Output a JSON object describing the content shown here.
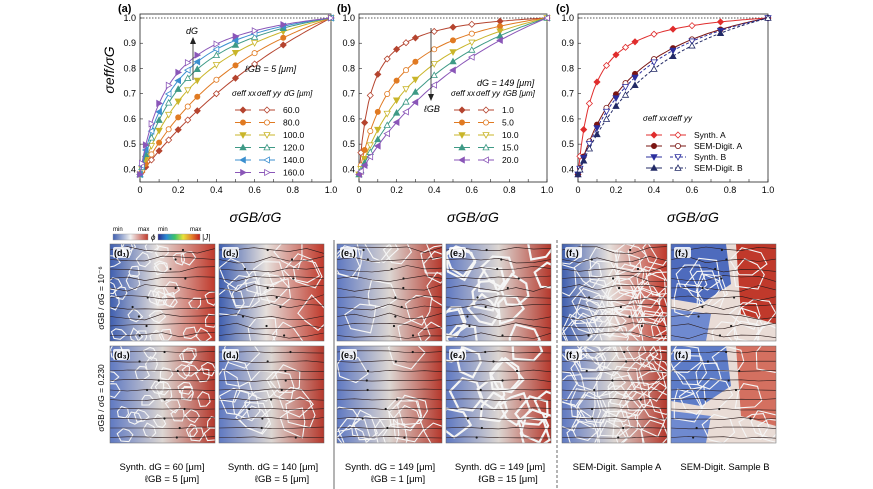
{
  "chart_data": [
    {
      "type": "line",
      "panel": "(a)",
      "ylabel": "σeff/σG",
      "xlabel": "σGB/σG",
      "xlim": [
        0,
        1
      ],
      "ylim": [
        0.35,
        1.0
      ],
      "xticks": [
        "0",
        "0.1",
        "0.2",
        "0.3",
        "0.4",
        "0.5",
        "0.6",
        "0.7",
        "0.8",
        "0.9",
        "1.0"
      ],
      "yticks": [
        "0.4",
        "0.5",
        "0.6",
        "0.7",
        "0.8",
        "0.9",
        "1.0"
      ],
      "annotation": "ℓGB = 5 [μm]",
      "arrow_label": "dG",
      "legend_header": [
        "σeff xx",
        "σeff yy",
        "dG [μm]"
      ],
      "x": [
        0,
        0.01,
        0.03,
        0.06,
        0.1,
        0.15,
        0.2,
        0.25,
        0.3,
        0.4,
        0.5,
        0.6,
        0.75,
        1.0
      ],
      "series": [
        {
          "name": "60.0",
          "color": "#b5442f",
          "marker": "diamond",
          "k": 0.6
        },
        {
          "name": "80.0",
          "color": "#e07a22",
          "marker": "circle",
          "k": 1.3
        },
        {
          "name": "100.0",
          "color": "#c9b52a",
          "marker": "tri-down",
          "k": 2.5
        },
        {
          "name": "120.0",
          "color": "#3e9a86",
          "marker": "tri-up",
          "k": 3.8
        },
        {
          "name": "140.0",
          "color": "#3b8fcf",
          "marker": "tri-left",
          "k": 5.0
        },
        {
          "name": "160.0",
          "color": "#8a56b8",
          "marker": "tri-right",
          "k": 6.5
        }
      ]
    },
    {
      "type": "line",
      "panel": "(b)",
      "xlabel": "σGB/σG",
      "xlim": [
        0,
        1
      ],
      "ylim": [
        0.35,
        1.0
      ],
      "xticks": [
        "0",
        "0.1",
        "0.2",
        "0.3",
        "0.4",
        "0.5",
        "0.6",
        "0.7",
        "0.8",
        "0.9",
        "1.0"
      ],
      "yticks": [
        "0.4",
        "0.5",
        "0.6",
        "0.7",
        "0.8",
        "0.9",
        "1.0"
      ],
      "annotation": "dG = 149 [μm]",
      "arrow_label": "ℓGB",
      "legend_header": [
        "σeff xx",
        "σeff yy",
        "ℓGB [μm]"
      ],
      "x": [
        0,
        0.01,
        0.03,
        0.06,
        0.1,
        0.15,
        0.2,
        0.25,
        0.3,
        0.4,
        0.5,
        0.6,
        0.75,
        1.0
      ],
      "series": [
        {
          "name": "1.0",
          "color": "#b5442f",
          "marker": "diamond",
          "k": 15
        },
        {
          "name": "5.0",
          "color": "#e07a22",
          "marker": "circle",
          "k": 5
        },
        {
          "name": "10.0",
          "color": "#c9b52a",
          "marker": "tri-down",
          "k": 2.6
        },
        {
          "name": "15.0",
          "color": "#3e9a86",
          "marker": "tri-up",
          "k": 1.6
        },
        {
          "name": "20.0",
          "color": "#8a56b8",
          "marker": "tri-left",
          "k": 1.0
        }
      ]
    },
    {
      "type": "line",
      "panel": "(c)",
      "xlabel": "σGB/σG",
      "xlim": [
        0,
        1
      ],
      "ylim": [
        0.35,
        1.0
      ],
      "xticks": [
        "0",
        "0.1",
        "0.2",
        "0.3",
        "0.4",
        "0.5",
        "0.6",
        "0.7",
        "0.8",
        "0.9",
        "1.0"
      ],
      "yticks": [
        "0.4",
        "0.5",
        "0.6",
        "0.7",
        "0.8",
        "0.9",
        "1.0"
      ],
      "legend_header": [
        "σeff xx",
        "σeff yy"
      ],
      "x": [
        0,
        0.01,
        0.03,
        0.06,
        0.1,
        0.15,
        0.2,
        0.25,
        0.3,
        0.4,
        0.5,
        0.6,
        0.75,
        1.0
      ],
      "series": [
        {
          "name": "Synth. A",
          "color": "#e02d2d",
          "marker": "diamond",
          "k": 12,
          "dash": false
        },
        {
          "name": "SEM-Digit. A",
          "color": "#7a1512",
          "marker": "circle",
          "k": 3.2,
          "dash": false
        },
        {
          "name": "Synth. B",
          "color": "#2b2f9e",
          "marker": "tri-down",
          "k": 2.8,
          "dash": true
        },
        {
          "name": "SEM-Digit. B",
          "color": "#222a66",
          "marker": "tri-up",
          "k": 2.1,
          "dash": true
        }
      ]
    }
  ],
  "colorbars": {
    "min": "min",
    "max": "max",
    "phi": "ϕ",
    "J": "|J|"
  },
  "row_labels": [
    "σGB / σG = 10⁻⁶",
    "σGB / σG = 0.230"
  ],
  "maps": [
    {
      "label": "(d₁)",
      "group": "d",
      "row": 0
    },
    {
      "label": "(d₂)",
      "group": "d",
      "row": 0
    },
    {
      "label": "(e₁)",
      "group": "e",
      "row": 0
    },
    {
      "label": "(e₂)",
      "group": "e",
      "row": 0
    },
    {
      "label": "(f₁)",
      "group": "f",
      "row": 0
    },
    {
      "label": "(f₂)",
      "group": "f",
      "row": 0
    },
    {
      "label": "(d₃)",
      "group": "d",
      "row": 1
    },
    {
      "label": "(d₄)",
      "group": "d",
      "row": 1
    },
    {
      "label": "(e₃)",
      "group": "e",
      "row": 1
    },
    {
      "label": "(e₄)",
      "group": "e",
      "row": 1
    },
    {
      "label": "(f₃)",
      "group": "f",
      "row": 1
    },
    {
      "label": "(f₄)",
      "group": "f",
      "row": 1
    }
  ],
  "captions": [
    {
      "line1": "Synth. dG = 60 [μm]",
      "line2": "ℓGB = 5 [μm]"
    },
    {
      "line1": "Synth. dG = 140 [μm]",
      "line2": "ℓGB = 5 [μm]"
    },
    {
      "line1": "Synth. dG = 149 [μm]",
      "line2": "ℓGB = 1 [μm]"
    },
    {
      "line1": "Synth. dG = 149 [μm]",
      "line2": "ℓGB = 15 [μm]"
    },
    {
      "line1": "SEM-Digit. Sample A",
      "line2": ""
    },
    {
      "line1": "SEM-Digit. Sample B",
      "line2": ""
    }
  ]
}
